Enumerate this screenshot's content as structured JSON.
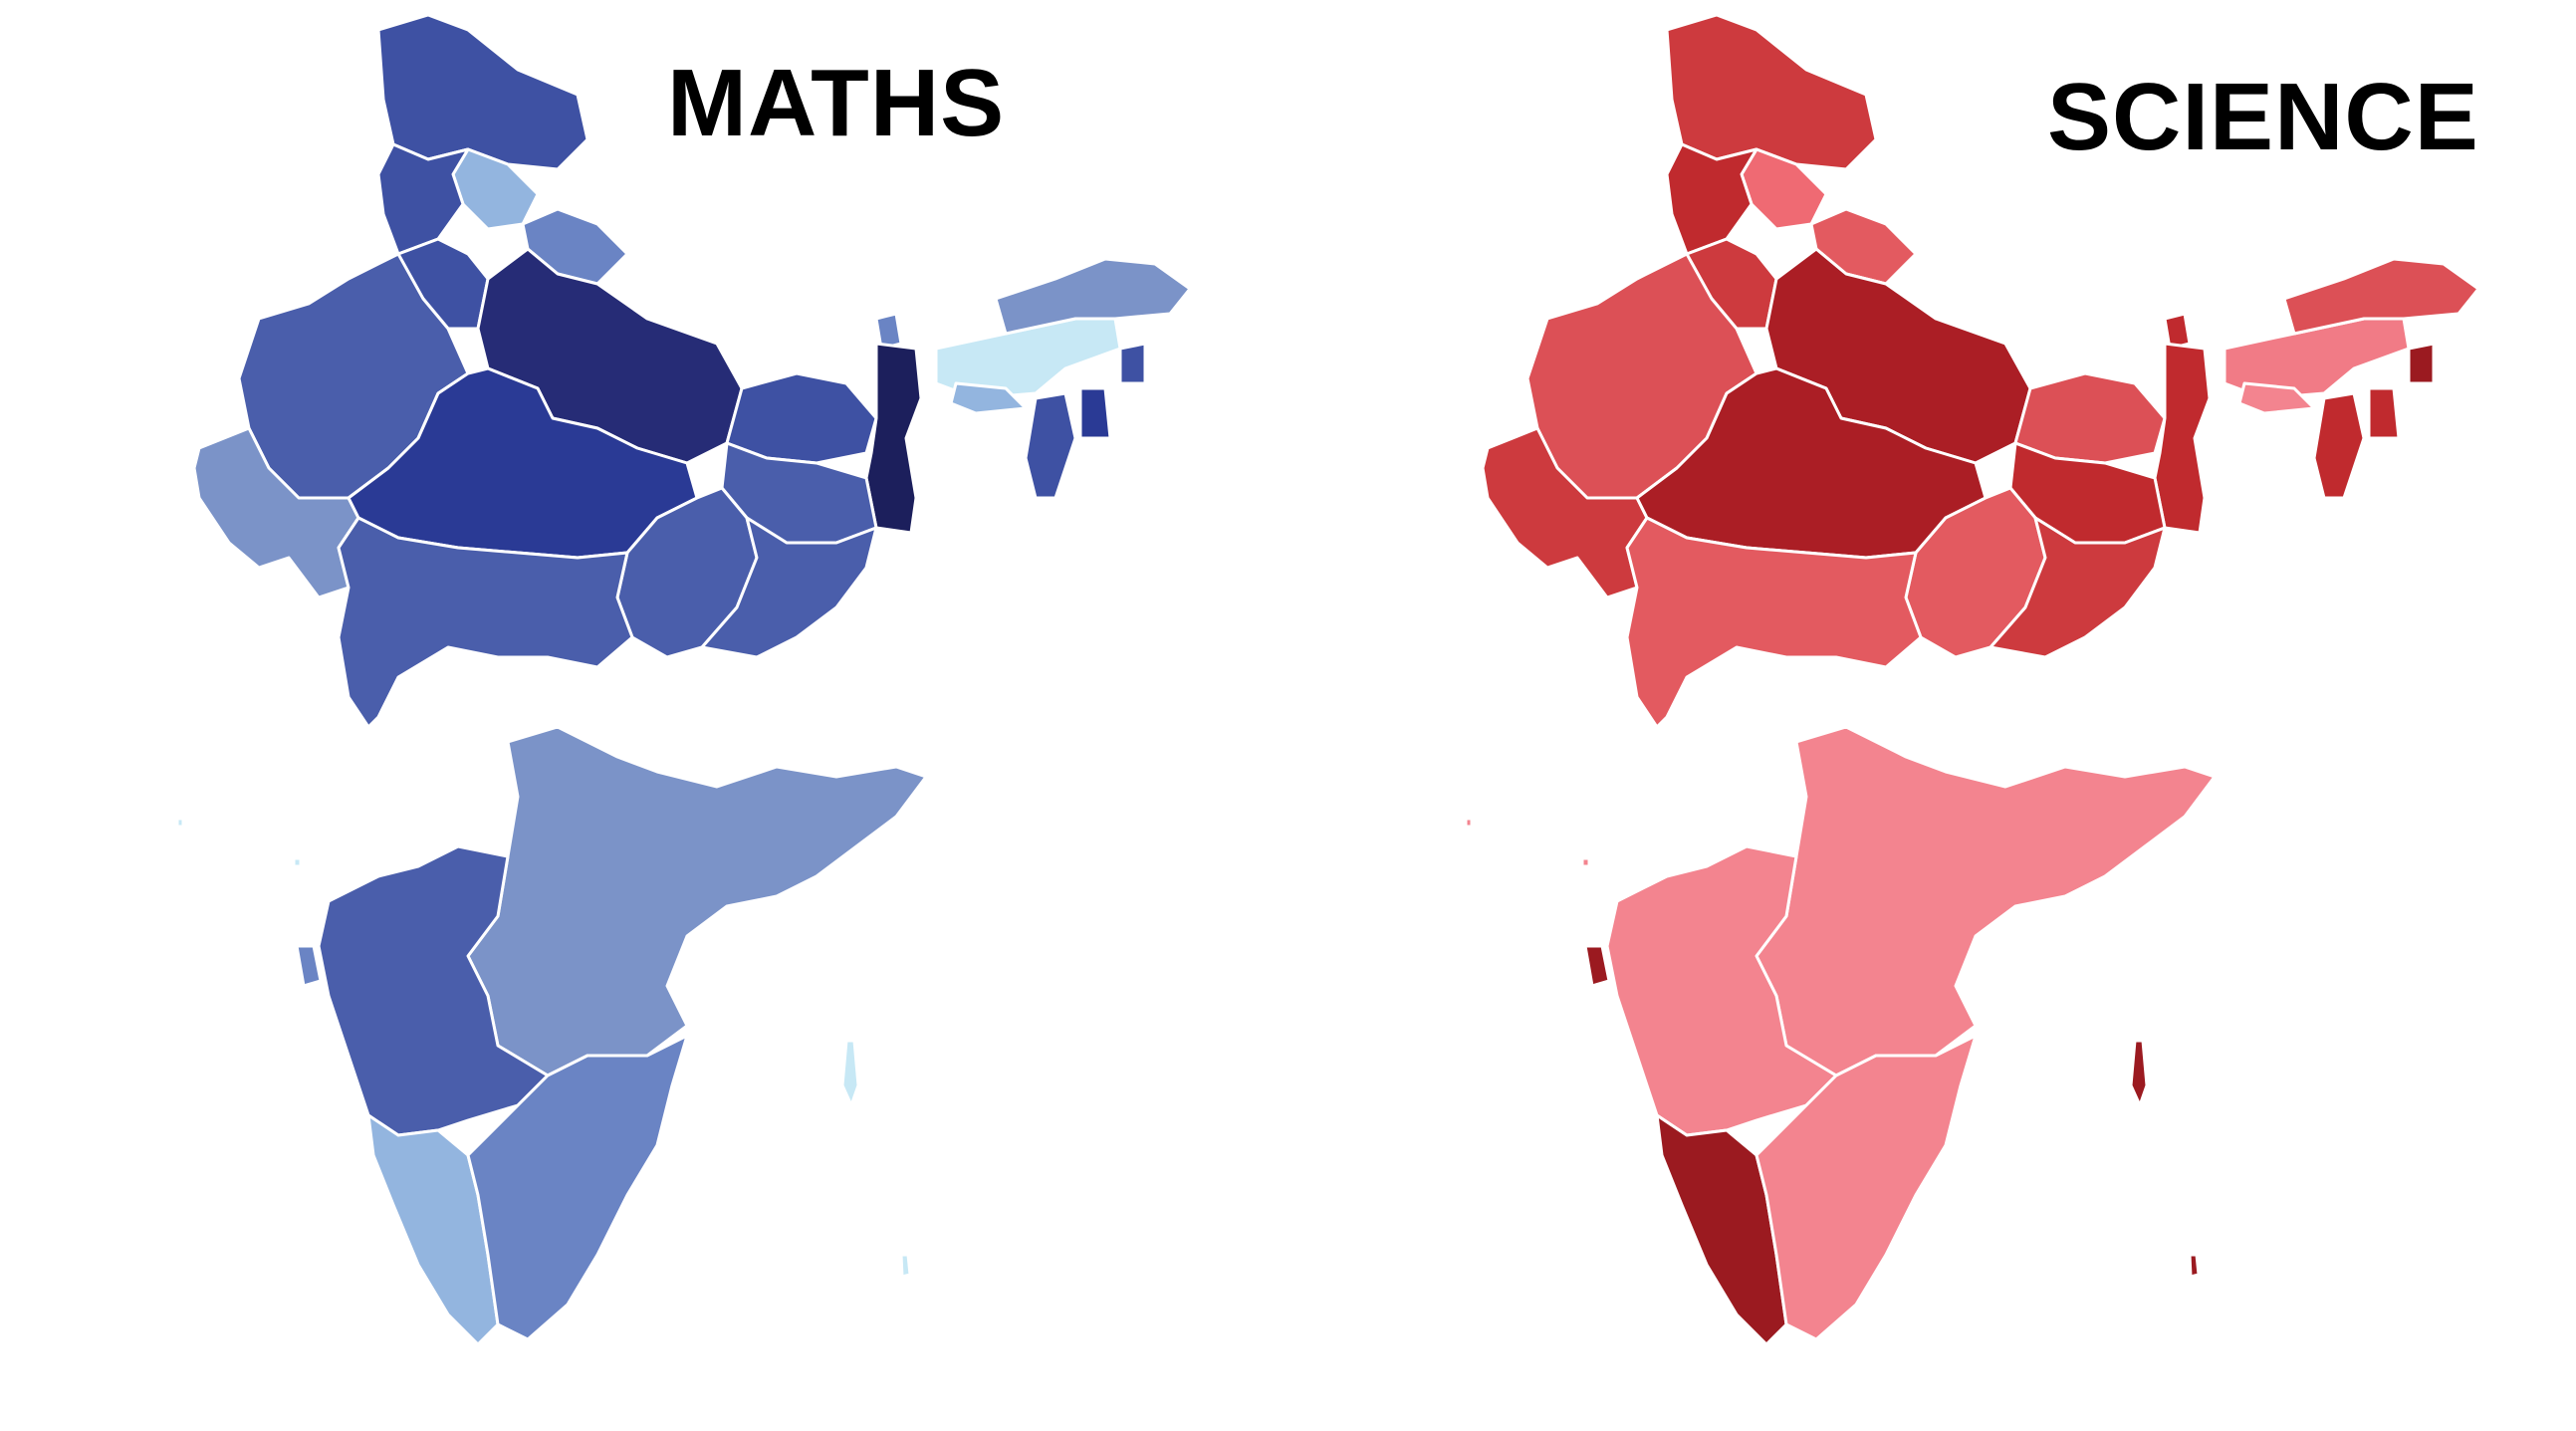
{
  "maps": [
    {
      "id": "maths",
      "title": "MATHS",
      "palette": {
        "very_dark": "#1c1f5c",
        "dark": "#262c76",
        "dark_mid": "#2a3a95",
        "mid": "#3e51a3",
        "mid_light": "#4a5eab",
        "light": "#6a84c4",
        "lighter": "#7b93c8",
        "pale": "#93b5df",
        "very_pale": "#c7e8f5"
      }
    },
    {
      "id": "science",
      "title": "SCIENCE",
      "palette": {
        "very_dark": "#9b1a20",
        "dark": "#ab1e25",
        "dark_mid": "#c02a2e",
        "mid": "#cd3a3e",
        "mid_light": "#dc5056",
        "light": "#e35a60",
        "lighter": "#ef6a73",
        "pale": "#f17b86",
        "very_pale": "#f3848f"
      }
    }
  ]
}
